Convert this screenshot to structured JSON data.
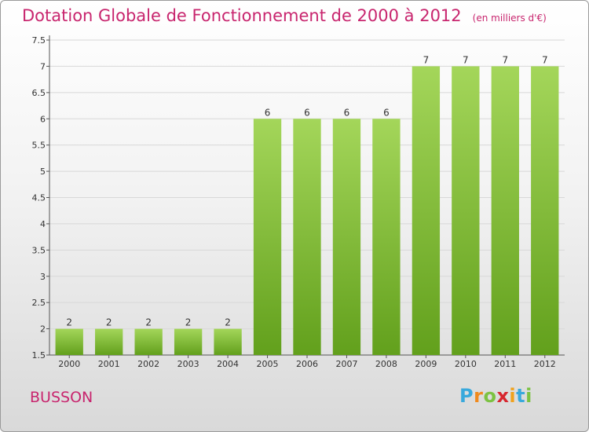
{
  "header": {
    "title": "Dotation Globale de Fonctionnement de 2000 à 2012",
    "unit": "(en milliers d'€)"
  },
  "footer": {
    "commune": "BUSSON",
    "logo": {
      "letters": [
        "P",
        "r",
        "o",
        "x",
        "i",
        "t",
        "i"
      ],
      "colors": [
        "#39a9dc",
        "#f08a1d",
        "#7cc242",
        "#d7262e",
        "#f0a21d",
        "#39a9dc",
        "#7cc242"
      ]
    }
  },
  "colors": {
    "bar_light": "#a4d65a",
    "bar_dark": "#62a01c",
    "title": "#c8256e"
  },
  "chart_data": {
    "type": "bar",
    "categories": [
      "2000",
      "2001",
      "2002",
      "2003",
      "2004",
      "2005",
      "2006",
      "2007",
      "2008",
      "2009",
      "2010",
      "2011",
      "2012"
    ],
    "values": [
      2,
      2,
      2,
      2,
      2,
      6,
      6,
      6,
      6,
      7,
      7,
      7,
      7
    ],
    "ylim": [
      1.5,
      7.5
    ],
    "yticks": [
      "1.5",
      "2",
      "2.5",
      "3",
      "3.5",
      "4",
      "4.5",
      "5",
      "5.5",
      "6",
      "6.5",
      "7",
      "7.5"
    ],
    "grid": true
  }
}
